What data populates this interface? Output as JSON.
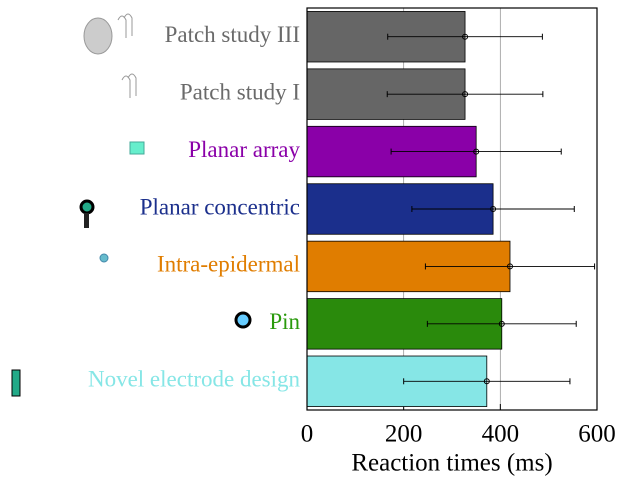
{
  "chart_data": {
    "type": "barh",
    "categories": [
      "Patch study III",
      "Patch study I",
      "Planar array",
      "Planar concentric",
      "Intra-epidermal",
      "Pin",
      "Novel electrode design"
    ],
    "values": [
      327,
      327,
      350,
      385,
      420,
      403,
      372
    ],
    "errors": [
      160,
      161,
      176,
      168,
      175,
      154,
      172
    ],
    "colors": [
      "#666666",
      "#666666",
      "#8a00a8",
      "#1b2f8c",
      "#e07d00",
      "#2a8a0c",
      "#86e6e6"
    ],
    "label_colors": [
      "#6a6a6a",
      "#6a6a6a",
      "#8a00a8",
      "#1b2f8c",
      "#e07d00",
      "#2a9a0c",
      "#86e6e6"
    ],
    "xlabel": "Reaction times (ms)",
    "xlim": [
      0,
      600
    ],
    "xticks": [
      0,
      200,
      400,
      600
    ],
    "grid": true
  }
}
